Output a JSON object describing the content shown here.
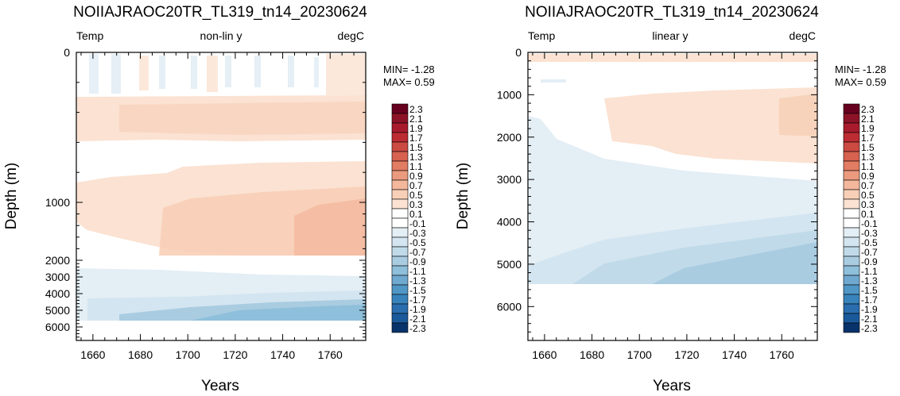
{
  "levels": [
    "2.3",
    "2.1",
    "1.9",
    "1.7",
    "1.5",
    "1.3",
    "1.1",
    "0.9",
    "0.7",
    "0.5",
    "0.3",
    "0.1",
    "-0.1",
    "-0.3",
    "-0.5",
    "-0.7",
    "-0.9",
    "-1.1",
    "-1.3",
    "-1.5",
    "-1.7",
    "-1.9",
    "-2.1",
    "-2.3"
  ],
  "colors": [
    "#67001f",
    "#8c1327",
    "#a81b2c",
    "#bc2c32",
    "#cb4a42",
    "#d6624f",
    "#e27c63",
    "#eb9a7e",
    "#f3b79b",
    "#f8cfb7",
    "#fbe2d2",
    "#ffffff",
    "#ffffff",
    "#e3eef5",
    "#d3e5f0",
    "#c0dae9",
    "#a9cce1",
    "#8ebfdb",
    "#6fa9d0",
    "#5097c5",
    "#3983bc",
    "#2a6eb0",
    "#1a5a9b",
    "#08326a"
  ],
  "chart_data": [
    {
      "type": "heatmap",
      "title": "NOIIAJRAOC20TR_TL319_tn14_20230624",
      "subtitle_left": "Temp",
      "subtitle_center": "non-lin y",
      "subtitle_right": "degC",
      "xlabel": "Years",
      "ylabel": "Depth (m)",
      "xlim": [
        1653,
        1775
      ],
      "ylim": [
        0,
        6800
      ],
      "y_scale": "non-linear",
      "x_ticks": [
        1660,
        1680,
        1700,
        1720,
        1740,
        1760
      ],
      "y_tick_labels": [
        "0",
        "1000",
        "2000",
        "3000",
        "4000",
        "5000",
        "6000"
      ],
      "min_label": "MIN= -1.28",
      "max_label": "MAX=  0.59",
      "value_range": [
        -1.28,
        0.59
      ]
    },
    {
      "type": "heatmap",
      "title": "NOIIAJRAOC20TR_TL319_tn14_20230624",
      "subtitle_left": "Temp",
      "subtitle_center": "linear y",
      "subtitle_right": "degC",
      "xlabel": "Years",
      "ylabel": "Depth (m)",
      "xlim": [
        1653,
        1775
      ],
      "ylim": [
        0,
        6800
      ],
      "y_scale": "linear",
      "x_ticks": [
        1660,
        1680,
        1700,
        1720,
        1740,
        1760
      ],
      "y_tick_labels": [
        "0",
        "1000",
        "2000",
        "3000",
        "4000",
        "5000",
        "6000"
      ],
      "min_label": "MIN= -1.28",
      "max_label": "MAX=  0.59",
      "value_range": [
        -1.28,
        0.59
      ]
    }
  ]
}
